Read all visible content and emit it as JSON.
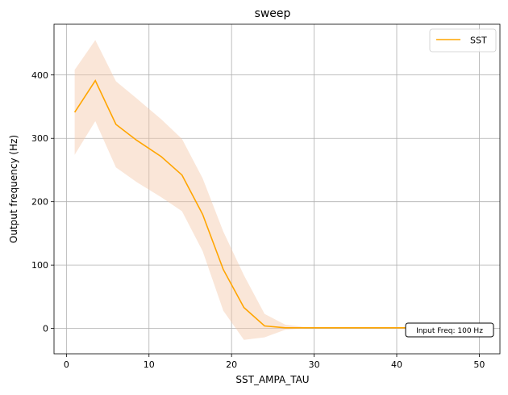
{
  "chart_data": {
    "type": "line",
    "title": "sweep",
    "xlabel": "SST_AMPA_TAU",
    "ylabel": "Output frequency (Hz)",
    "xlim": [
      -1.5,
      52.5
    ],
    "ylim": [
      -40,
      480
    ],
    "xticks": [
      0,
      10,
      20,
      30,
      40,
      50
    ],
    "yticks": [
      0,
      100,
      200,
      300,
      400
    ],
    "grid": true,
    "legend_position": "top-right",
    "series": [
      {
        "name": "SST",
        "color": "#ffa500",
        "band_color": "#f5c8a8",
        "x": [
          1,
          3.5,
          6,
          8.5,
          11.5,
          14,
          16.5,
          19,
          21.5,
          24,
          26.5,
          29,
          31.5,
          34,
          36.5,
          39,
          41.5,
          44,
          46.5,
          49
        ],
        "y": [
          341,
          391,
          322,
          297,
          271,
          242,
          180,
          93,
          33,
          4,
          1,
          1,
          1,
          1,
          1,
          1,
          1,
          1,
          1,
          1
        ],
        "upper": [
          408,
          455,
          390,
          363,
          330,
          299,
          237,
          153,
          84,
          23,
          6,
          2,
          2,
          2,
          2,
          2,
          2,
          2,
          2,
          2
        ],
        "lower": [
          274,
          327,
          254,
          231,
          207,
          185,
          122,
          28,
          -18,
          -14,
          -2,
          0,
          0,
          0,
          0,
          0,
          0,
          0,
          0,
          0
        ]
      }
    ],
    "annotation": "Input Freq: 100 Hz"
  }
}
